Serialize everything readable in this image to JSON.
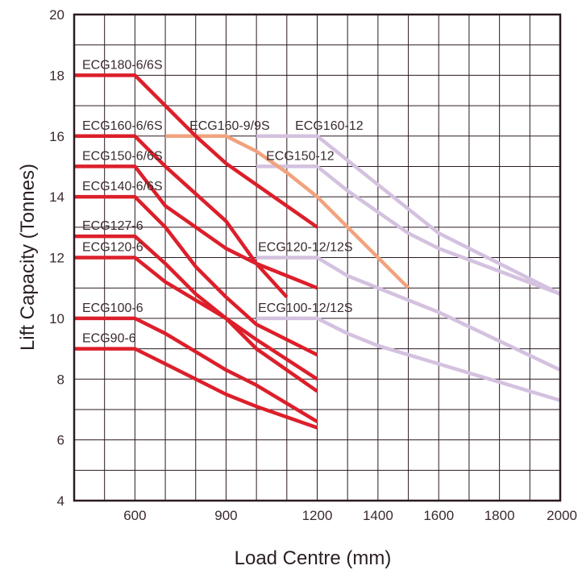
{
  "chart_data": {
    "type": "line",
    "xlabel": "Load Centre (mm)",
    "ylabel": "Lift Capacity (Tonnes)",
    "ylim": [
      4,
      20
    ],
    "y_ticks": [
      4,
      6,
      8,
      10,
      12,
      14,
      16,
      18,
      20
    ],
    "x_ticks": [
      {
        "value": 600,
        "label": "600"
      },
      {
        "value": 900,
        "label": "900"
      },
      {
        "value": 1200,
        "label": "1200"
      },
      {
        "value": 1400,
        "label": "1400"
      },
      {
        "value": 1600,
        "label": "1600"
      },
      {
        "value": 1800,
        "label": "1800"
      },
      {
        "value": 2000,
        "label": "2000"
      }
    ],
    "x_scale_note": "piecewise-linear x axis: 600-1200 spans six columns of 100 mm, 1200-2000 spans eight columns of 100 mm",
    "x_columns": [
      400,
      500,
      600,
      700,
      800,
      900,
      1000,
      1100,
      1200,
      1300,
      1400,
      1500,
      1600,
      1700,
      1800,
      1900,
      2000
    ],
    "grid": true,
    "colors": {
      "red": "#dc1f2a",
      "orange": "#f0a37e",
      "lavender": "#d4c1df",
      "frame": "#2b1a22"
    },
    "series": [
      {
        "name": "ECG180-6/6S",
        "color": "red",
        "points": [
          [
            400,
            18
          ],
          [
            600,
            18
          ],
          [
            700,
            17
          ],
          [
            800,
            16
          ],
          [
            900,
            15.1
          ],
          [
            1000,
            14.4
          ],
          [
            1200,
            13
          ]
        ]
      },
      {
        "name": "ECG160-6/6S",
        "color": "red",
        "points": [
          [
            400,
            16
          ],
          [
            600,
            16
          ],
          [
            700,
            15
          ],
          [
            800,
            14.1
          ],
          [
            900,
            13.2
          ],
          [
            1000,
            11.8
          ],
          [
            1100,
            10.7
          ]
        ]
      },
      {
        "name": "ECG150-6/6S",
        "color": "red",
        "points": [
          [
            400,
            15
          ],
          [
            600,
            15
          ],
          [
            700,
            13.7
          ],
          [
            800,
            13
          ],
          [
            900,
            12.3
          ],
          [
            1000,
            11.8
          ],
          [
            1200,
            11
          ]
        ]
      },
      {
        "name": "ECG140-6/6S",
        "color": "red",
        "points": [
          [
            400,
            14
          ],
          [
            600,
            14
          ],
          [
            700,
            13
          ],
          [
            800,
            11.7
          ],
          [
            900,
            10.7
          ],
          [
            1000,
            9.8
          ],
          [
            1200,
            8.8
          ]
        ]
      },
      {
        "name": "ECG127-6",
        "color": "red",
        "points": [
          [
            400,
            12.7
          ],
          [
            600,
            12.7
          ],
          [
            700,
            11.8
          ],
          [
            800,
            10.8
          ],
          [
            900,
            10
          ],
          [
            1000,
            9.3
          ],
          [
            1200,
            8
          ]
        ]
      },
      {
        "name": "ECG120-6",
        "color": "red",
        "points": [
          [
            400,
            12
          ],
          [
            600,
            12
          ],
          [
            700,
            11.2
          ],
          [
            800,
            10.6
          ],
          [
            900,
            10
          ],
          [
            1000,
            9
          ],
          [
            1200,
            7.6
          ]
        ]
      },
      {
        "name": "ECG100-6",
        "color": "red",
        "points": [
          [
            400,
            10
          ],
          [
            600,
            10
          ],
          [
            700,
            9.5
          ],
          [
            800,
            8.9
          ],
          [
            900,
            8.3
          ],
          [
            1000,
            7.8
          ],
          [
            1200,
            6.6
          ]
        ]
      },
      {
        "name": "ECG90-6",
        "color": "red",
        "points": [
          [
            400,
            9
          ],
          [
            600,
            9
          ],
          [
            700,
            8.5
          ],
          [
            800,
            8
          ],
          [
            900,
            7.5
          ],
          [
            1000,
            7.1
          ],
          [
            1200,
            6.4
          ]
        ]
      },
      {
        "name": "ECG160-9/9S",
        "color": "orange",
        "points": [
          [
            700,
            16
          ],
          [
            900,
            16
          ],
          [
            1000,
            15.5
          ],
          [
            1100,
            14.8
          ],
          [
            1200,
            14
          ],
          [
            1300,
            13
          ],
          [
            1500,
            11
          ]
        ]
      },
      {
        "name": "ECG160-12",
        "color": "lavender",
        "points": [
          [
            1000,
            16
          ],
          [
            1200,
            16
          ],
          [
            1300,
            15.2
          ],
          [
            1400,
            14.4
          ],
          [
            1500,
            13.6
          ],
          [
            1600,
            12.8
          ],
          [
            2000,
            10.8
          ]
        ]
      },
      {
        "name": "ECG150-12",
        "color": "lavender",
        "points": [
          [
            1000,
            15
          ],
          [
            1200,
            15
          ],
          [
            1300,
            14.2
          ],
          [
            1400,
            13.5
          ],
          [
            1500,
            12.8
          ],
          [
            1600,
            12.3
          ],
          [
            2000,
            10.8
          ]
        ]
      },
      {
        "name": "ECG120-12/12S",
        "color": "lavender",
        "points": [
          [
            1000,
            12
          ],
          [
            1200,
            12
          ],
          [
            1300,
            11.4
          ],
          [
            1400,
            11
          ],
          [
            1500,
            10.6
          ],
          [
            1600,
            10.2
          ],
          [
            2000,
            8.3
          ]
        ]
      },
      {
        "name": "ECG100-12/12S",
        "color": "lavender",
        "points": [
          [
            1000,
            10
          ],
          [
            1200,
            10
          ],
          [
            1300,
            9.5
          ],
          [
            1400,
            9.1
          ],
          [
            1500,
            8.8
          ],
          [
            1600,
            8.5
          ],
          [
            2000,
            7.3
          ]
        ]
      }
    ]
  }
}
